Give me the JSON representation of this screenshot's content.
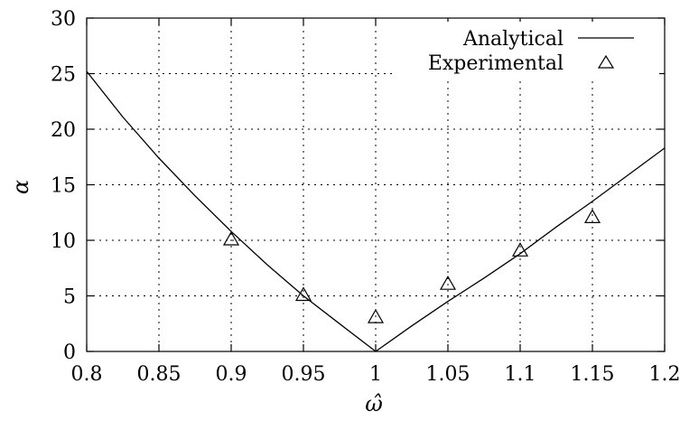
{
  "chart_data": {
    "type": "line",
    "title": "",
    "xlabel": "ω̂",
    "ylabel": "α",
    "xlim": [
      0.8,
      1.2
    ],
    "ylim": [
      0,
      30
    ],
    "xticks": [
      "0.8",
      "0.85",
      "0.9",
      "0.95",
      "1",
      "1.05",
      "1.1",
      "1.15",
      "1.2"
    ],
    "yticks": [
      "0",
      "5",
      "10",
      "15",
      "20",
      "25",
      "30"
    ],
    "grid": true,
    "legend_position": "top-right",
    "series": [
      {
        "name": "Analytical",
        "style": "line",
        "x": [
          0.8,
          0.825,
          0.85,
          0.875,
          0.9,
          0.925,
          0.95,
          0.975,
          1.0,
          1.025,
          1.05,
          1.075,
          1.1,
          1.125,
          1.15,
          1.175,
          1.2
        ],
        "y": [
          25.2,
          21.1,
          17.4,
          14.0,
          10.8,
          7.8,
          5.0,
          2.5,
          0,
          2.3,
          4.5,
          6.6,
          8.8,
          11.2,
          13.5,
          15.9,
          18.3
        ]
      },
      {
        "name": "Experimental",
        "style": "marker",
        "marker": "triangle",
        "x": [
          0.9,
          0.95,
          1.0,
          1.05,
          1.1,
          1.15
        ],
        "y": [
          10,
          5,
          3,
          6,
          9,
          12
        ]
      }
    ]
  }
}
